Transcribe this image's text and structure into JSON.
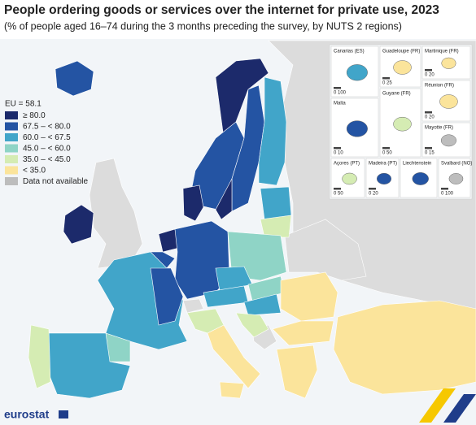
{
  "header": {
    "title": "People ordering goods or services over the internet for private use, 2023",
    "subtitle": "(% of people aged 16–74 during the 3 months preceding the survey, by NUTS 2 regions)"
  },
  "legend": {
    "title": "EU = 58.1",
    "items": [
      {
        "label": "≥ 80.0",
        "color": "#1c2a6b"
      },
      {
        "label": "67.5 – < 80.0",
        "color": "#2454a3"
      },
      {
        "label": "60.0 – < 67.5",
        "color": "#41a5c9"
      },
      {
        "label": "45.0 – < 60.0",
        "color": "#8fd4c6"
      },
      {
        "label": "35.0 – < 45.0",
        "color": "#d5ecb3"
      },
      {
        "label": "< 35.0",
        "color": "#fbe49b"
      },
      {
        "label": "Data not available",
        "color": "#bdbdbd"
      }
    ]
  },
  "insets": [
    {
      "label": "Canarias (ES)",
      "scale": "0 100"
    },
    {
      "label": "Guadeloupe (FR)",
      "scale": "0 25"
    },
    {
      "label": "Martinique (FR)",
      "scale": "0 20"
    },
    {
      "label": "Réunion (FR)",
      "scale": "0 20"
    },
    {
      "label": "Malta",
      "scale": "0 10"
    },
    {
      "label": "Guyane (FR)",
      "scale": "0 50"
    },
    {
      "label": "Mayotte (FR)",
      "scale": "0 15"
    },
    {
      "label": "Açores (PT)",
      "scale": "0 50"
    },
    {
      "label": "Madeira (PT)",
      "scale": "0 20"
    },
    {
      "label": "Liechtenstein",
      "scale": ""
    },
    {
      "label": "Svalbard (NO)",
      "scale": "0 100"
    }
  ],
  "footer": {
    "logo": "eurostat"
  }
}
